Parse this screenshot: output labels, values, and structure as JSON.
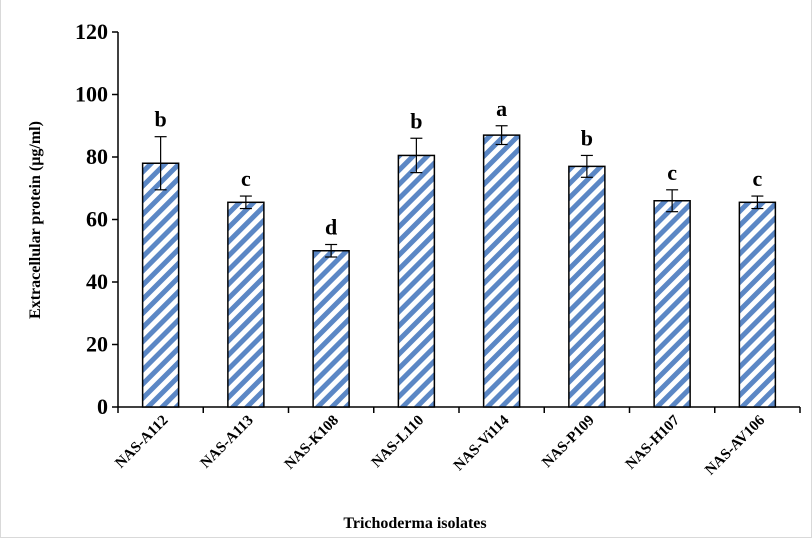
{
  "chart_data": {
    "type": "bar",
    "xlabel": "Trichoderma isolates",
    "ylabel": "Extracellular protein (µg/ml)",
    "ylim": [
      0,
      120
    ],
    "yticks": [
      0,
      20,
      40,
      60,
      80,
      100,
      120
    ],
    "grid": false,
    "bar_fill": "hatched diagonal stripes",
    "colors": {
      "stripe": "#5b87c5",
      "stroke": "#000000",
      "background": "#ffffff"
    },
    "categories": [
      "NAS-A112",
      "NAS-A113",
      "NAS-K108",
      "NAS-L110",
      "NAS-Vi114",
      "NAS-P109",
      "NAS-H107",
      "NAS-AV106"
    ],
    "values": [
      78,
      65.5,
      50,
      80.5,
      87,
      77,
      66,
      65.5
    ],
    "errors": [
      8.5,
      2,
      2,
      5.5,
      3,
      3.5,
      3.5,
      2
    ],
    "letters": [
      "b",
      "c",
      "d",
      "b",
      "a",
      "b",
      "c",
      "c"
    ]
  }
}
